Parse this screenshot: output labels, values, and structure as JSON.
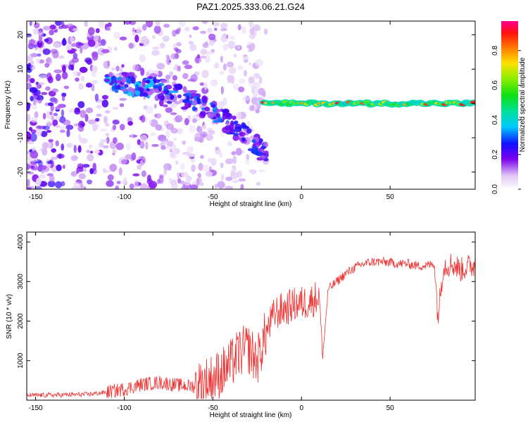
{
  "title": "PAZ1.2025.333.06.21.G24",
  "chart_data": [
    {
      "type": "heatmap",
      "name": "spectrogram",
      "xlabel": "Height of straight line (km)",
      "ylabel": "Frequency (Hz)",
      "xlim": [
        -155,
        98
      ],
      "ylim": [
        -25,
        24
      ],
      "xticks": [
        -150,
        -100,
        -50,
        0,
        50
      ],
      "yticks": [
        -20,
        -10,
        0,
        10,
        20
      ],
      "colorbar": {
        "label": "Normalized spectral amplitude",
        "range": [
          0,
          0.97
        ],
        "ticks": [
          0.0,
          0.2,
          0.4,
          0.6,
          0.8
        ]
      },
      "features": [
        {
          "segment": "diffuse noise",
          "x_range": [
            -155,
            -20
          ],
          "freq_range": [
            -25,
            24
          ],
          "amplitude": 0.05
        },
        {
          "segment": "descending trace",
          "x_range": [
            -110,
            -20
          ],
          "freq_start": 6,
          "freq_end": -15,
          "amplitude": 0.25
        },
        {
          "segment": "main carrier line",
          "x_range": [
            -22,
            98
          ],
          "freq": 0,
          "amplitude": 0.95
        }
      ]
    },
    {
      "type": "line",
      "name": "snr",
      "xlabel": "Height of straight line (km)",
      "ylabel": "SNR (10 * v/v)",
      "xlim": [
        -155,
        98
      ],
      "ylim": [
        0,
        4250
      ],
      "xticks": [
        -150,
        -100,
        -50,
        0,
        50
      ],
      "yticks": [
        1000,
        2000,
        3000,
        4000
      ],
      "color": "#ee3333",
      "series": [
        {
          "name": "SNR",
          "x": [
            -155,
            -140,
            -120,
            -110,
            -100,
            -90,
            -80,
            -70,
            -60,
            -50,
            -45,
            -40,
            -35,
            -30,
            -25,
            -20,
            -15,
            -10,
            -5,
            0,
            5,
            10,
            12,
            15,
            20,
            25,
            30,
            35,
            40,
            45,
            50,
            55,
            60,
            65,
            70,
            75,
            77,
            80,
            85,
            90,
            95,
            98
          ],
          "y": [
            120,
            130,
            150,
            200,
            280,
            400,
            450,
            380,
            350,
            550,
            700,
            900,
            1200,
            1300,
            1000,
            1700,
            2200,
            2300,
            2400,
            2450,
            2500,
            2650,
            1100,
            2800,
            3000,
            3200,
            3350,
            3450,
            3500,
            3500,
            3480,
            3450,
            3450,
            3400,
            3400,
            3450,
            2100,
            3400,
            3450,
            3300,
            3400,
            3400
          ]
        }
      ]
    }
  ]
}
